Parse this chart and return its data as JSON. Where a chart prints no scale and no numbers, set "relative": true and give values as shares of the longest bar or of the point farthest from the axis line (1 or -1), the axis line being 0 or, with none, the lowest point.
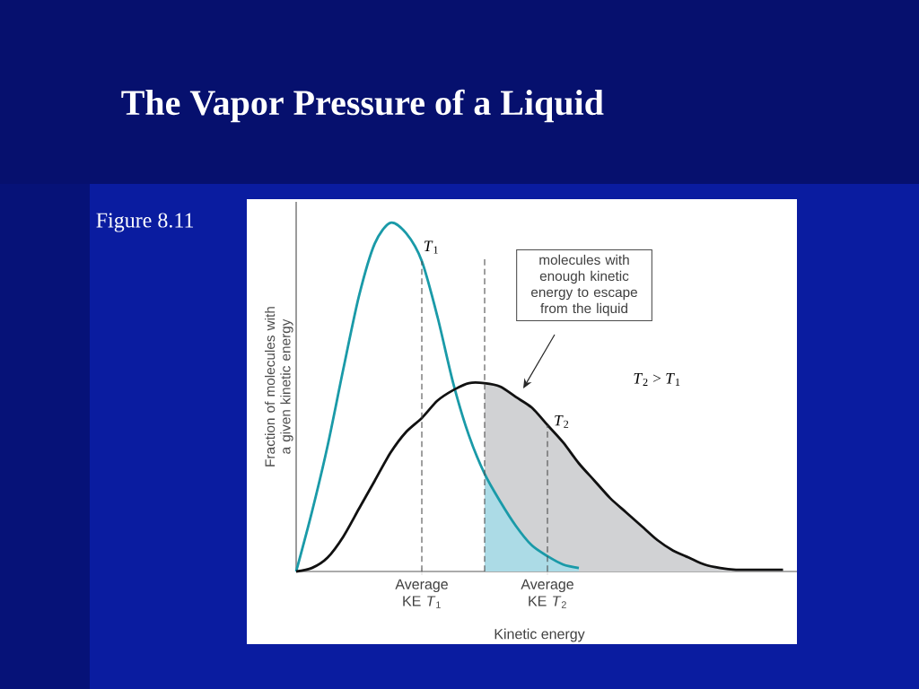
{
  "chart_data": {
    "type": "line",
    "relative": true,
    "title": "The Vapor Pressure of a Liquid",
    "xlabel": "Kinetic energy",
    "ylabel": "Fraction of molecules with a given kinetic energy",
    "categories": [
      null,
      null,
      null,
      null,
      null,
      null,
      null,
      null,
      "Average KE *T*$_{1}$",
      null,
      null,
      null,
      null,
      null,
      null,
      null,
      "Average KE *T*$_{2}$",
      null,
      null,
      null,
      null,
      null,
      null,
      null,
      null,
      null,
      null,
      null,
      null,
      null,
      null,
      null
    ],
    "series": [
      {
        "type": "area",
        "color": "#d1d2d4",
        "values": [
          null,
          null,
          null,
          null,
          null,
          null,
          null,
          null,
          null,
          null,
          null,
          null,
          0.54,
          0.53,
          0.5,
          0.47,
          0.42,
          0.37,
          0.31,
          0.26,
          0.21,
          0.17,
          0.13,
          0.09,
          0.06,
          0.04,
          0.02,
          0.01,
          0.005,
          0.005,
          0.005,
          0.005
        ]
      },
      {
        "type": "area",
        "color": "#acdbe6",
        "values": [
          null,
          null,
          null,
          null,
          null,
          null,
          null,
          null,
          null,
          null,
          null,
          null,
          0.28,
          0.2,
          0.13,
          0.075,
          0.044,
          0.02,
          0.01,
          null,
          null,
          null,
          null,
          null,
          null,
          null,
          null,
          null,
          null,
          null,
          null,
          null
        ]
      },
      {
        "name": "*T*$_{1}$",
        "color": "#1a9aa8",
        "values": [
          0,
          0.17,
          0.36,
          0.58,
          0.79,
          0.94,
          1.0,
          0.97,
          0.89,
          0.73,
          0.54,
          0.39,
          0.28,
          0.2,
          0.13,
          0.075,
          0.044,
          0.02,
          0.01,
          null,
          null,
          null,
          null,
          null,
          null,
          null,
          null,
          null,
          null,
          null,
          null,
          null
        ]
      },
      {
        "name": "*T*$_{2}$",
        "color": "#111111",
        "values": [
          0,
          0.01,
          0.04,
          0.1,
          0.18,
          0.26,
          0.34,
          0.4,
          0.44,
          0.49,
          0.52,
          0.54,
          0.54,
          0.53,
          0.5,
          0.47,
          0.42,
          0.37,
          0.31,
          0.26,
          0.21,
          0.17,
          0.13,
          0.09,
          0.06,
          0.04,
          0.02,
          0.01,
          0.005,
          0.005,
          0.005,
          0.005
        ]
      }
    ],
    "annotations": [
      "Figure 8.11",
      "molecules with enough kinetic energy to escape from the liquid",
      "*T*$_{2}$ > *T*$_{1}$"
    ]
  }
}
